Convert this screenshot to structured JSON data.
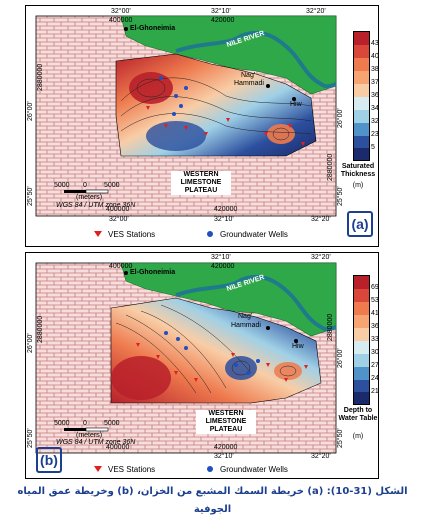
{
  "panel_a": {
    "letter": "(a)",
    "top_ticks": [
      "32°00'",
      "32°10'",
      "32°20'"
    ],
    "bottom_ticks": [
      "32°00'",
      "32°10'",
      "32°20'"
    ],
    "top_utm": [
      "400000",
      "420000"
    ],
    "bottom_utm": [
      "400000",
      "420000"
    ],
    "left_lat": [
      "26°00'",
      "25°50'"
    ],
    "right_lat": [
      "26°00'",
      "25°50'"
    ],
    "left_utm": [
      "2880000"
    ],
    "right_utm": [
      "2880000"
    ],
    "place_elghoneimia": "El-Ghoneimia",
    "river": "NILE RIVER",
    "nag_hammadi_1": "Nag'",
    "nag_hammadi_2": "Hammadi",
    "hiw": "Hiw",
    "plateau_1": "WESTERN",
    "plateau_2": "LIMESTONE",
    "plateau_3": "PLATEAU",
    "scale_labels": [
      "5000",
      "0",
      "5000"
    ],
    "scale_unit": "(meters)",
    "projection": "WGS 84 / UTM zone 36N",
    "legend_ves": "VES Stations",
    "legend_wells": "Groundwater Wells",
    "colorbar_labels": [
      "43",
      "40",
      "38",
      "37",
      "36",
      "34",
      "32",
      "23",
      "5"
    ],
    "colorbar_colors": [
      "#b8202a",
      "#d9473a",
      "#ee7a4e",
      "#f6a572",
      "#f8cda6",
      "#d6ecf0",
      "#9fd0e6",
      "#4f93c8",
      "#2c4f9e",
      "#1b2a6b"
    ],
    "colorbar_title": "Saturated Thickness",
    "colorbar_unit": "(m)"
  },
  "panel_b": {
    "letter": "(b)",
    "top_ticks": [
      "32°10'",
      "32°20'"
    ],
    "bottom_ticks": [
      "32°10'",
      "32°20'"
    ],
    "top_utm": [
      "400000",
      "420000"
    ],
    "bottom_utm": [
      "400000",
      "420000"
    ],
    "left_lat": [
      "26°00'",
      "25°50'"
    ],
    "right_lat": [
      "26°00'",
      "25°50'"
    ],
    "left_utm": [
      "2880000"
    ],
    "right_utm": [
      "2880000"
    ],
    "place_elghoneimia": "El-Ghoneimia",
    "river": "NILE RIVER",
    "nag_hammadi_1": "Nag'",
    "nag_hammadi_2": "Hammadi",
    "hiw": "Hiw",
    "plateau_1": "WESTERN",
    "plateau_2": "LIMESTONE",
    "plateau_3": "PLATEAU",
    "scale_labels": [
      "5000",
      "0",
      "5000"
    ],
    "scale_unit": "(meters)",
    "projection": "WGS 84 / UTM zone 36N",
    "legend_ves": "VES Stations",
    "legend_wells": "Groundwater Wells",
    "colorbar_labels": [
      "69",
      "53",
      "41",
      "36",
      "33",
      "30",
      "27",
      "24",
      "21"
    ],
    "colorbar_colors": [
      "#b8202a",
      "#d9473a",
      "#ee7a4e",
      "#f6a572",
      "#f8cda6",
      "#d6ecf0",
      "#9fd0e6",
      "#4f93c8",
      "#2c4f9e",
      "#1b2a6b"
    ],
    "colorbar_title": "Depth to Water Table",
    "colorbar_unit": "(m)"
  },
  "caption_line1": "الشكل (31-10): (a) خريطة السمك المشبع من الخزان، (b) وخريطة عمق المياه",
  "caption_line2": "الجوفية",
  "colors": {
    "brick_bg": "#f4d6d6",
    "brick_line": "#c97b7b",
    "green": "#2fa84a",
    "river": "#1f7a8c",
    "frame_blue": "#1c3f8f"
  }
}
